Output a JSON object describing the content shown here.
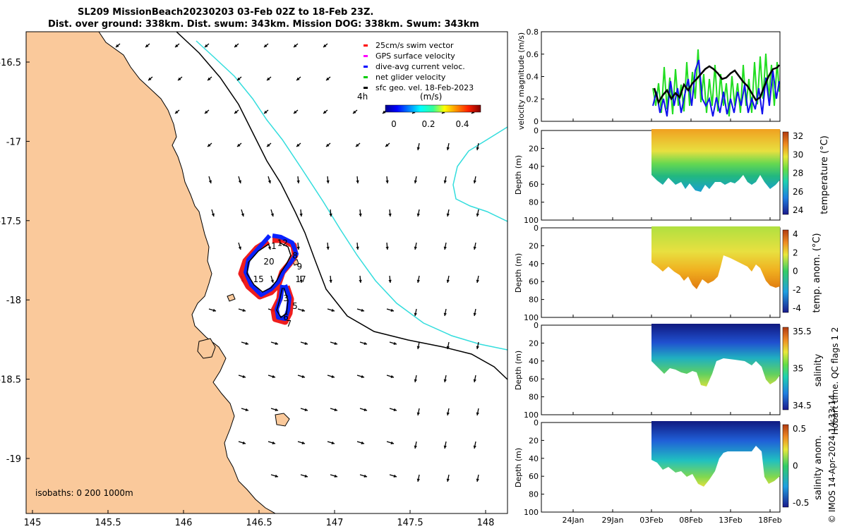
{
  "title": {
    "line1": "SL209 MissionBeach20230203 03-Feb 02Z to 18-Feb 23Z.",
    "line2": "Dist. over ground: 338km. Dist. swum: 343km. Mission DOG: 338km. Swum: 343km"
  },
  "map": {
    "lat_ticks": [
      "-16.5",
      "-17",
      "-17.5",
      "-18",
      "-18.5",
      "-19"
    ],
    "lon_ticks": [
      "145",
      "145.5",
      "146",
      "146.5",
      "147",
      "147.5",
      "148"
    ],
    "legend": [
      {
        "label": "25cm/s swim vector",
        "color": "#ff0000"
      },
      {
        "label": "GPS surface velocity",
        "color": "#ff00ff"
      },
      {
        "label": "dive-avg current veloc.",
        "color": "#0000ff"
      },
      {
        "label": "net glider velocity",
        "color": "#00cc00"
      },
      {
        "label": "sfc geo. vel. 18-Feb-2023",
        "color": "#000000"
      }
    ],
    "time_marker": "4h",
    "colorbar": {
      "title": "(m/s)",
      "ticks": [
        "0",
        "0.2",
        "0.4"
      ]
    },
    "isobaths": "isobaths: 0   200  1000m",
    "day_labels": [
      {
        "text": "12",
        "lon": 146.62,
        "lat": -17.64
      },
      {
        "text": "1",
        "lon": 146.58,
        "lat": -17.66
      },
      {
        "text": "8",
        "lon": 146.72,
        "lat": -17.72
      },
      {
        "text": "20",
        "lon": 146.53,
        "lat": -17.76
      },
      {
        "text": "9",
        "lon": 146.75,
        "lat": -17.79
      },
      {
        "text": "15",
        "lon": 146.46,
        "lat": -17.87
      },
      {
        "text": "17",
        "lon": 146.74,
        "lat": -17.87
      },
      {
        "text": "3",
        "lon": 146.66,
        "lat": -17.99
      },
      {
        "text": "5",
        "lon": 146.72,
        "lat": -18.04
      },
      {
        "text": "6",
        "lon": 146.66,
        "lat": -18.11
      },
      {
        "text": "7",
        "lon": 146.68,
        "lat": -18.15
      }
    ]
  },
  "panels": {
    "velocity": {
      "ylabel": "velocity magnitude (m/s)",
      "y_ticks": [
        "0",
        "0.2",
        "0.4",
        "0.6",
        "0.8"
      ]
    },
    "temperature": {
      "ylabel": "temperature (°C)",
      "cbar_ticks": [
        "32",
        "30",
        "28",
        "26",
        "24"
      ]
    },
    "temp_anom": {
      "ylabel": "temp. anom. (°C)",
      "cbar_ticks": [
        "4",
        "2",
        "0",
        "-2",
        "-4"
      ]
    },
    "salinity": {
      "ylabel": "salinity",
      "cbar_ticks": [
        "35.5",
        "35",
        "34.5"
      ]
    },
    "sal_anom": {
      "ylabel": "salinity anom.",
      "cbar_ticks": [
        "0.5",
        "0",
        "-0.5"
      ]
    },
    "depth_label": "Depth (m)",
    "depth_ticks": [
      "0",
      "20",
      "40",
      "60",
      "80",
      "100"
    ],
    "x_ticks": [
      "24Jan",
      "29Jan",
      "03Feb",
      "08Feb",
      "13Feb",
      "18Feb"
    ],
    "qc_label": "Hobart time. QC flags 1  2"
  },
  "credit": "© IMOS 14-Apr-2024 14:33:14"
}
